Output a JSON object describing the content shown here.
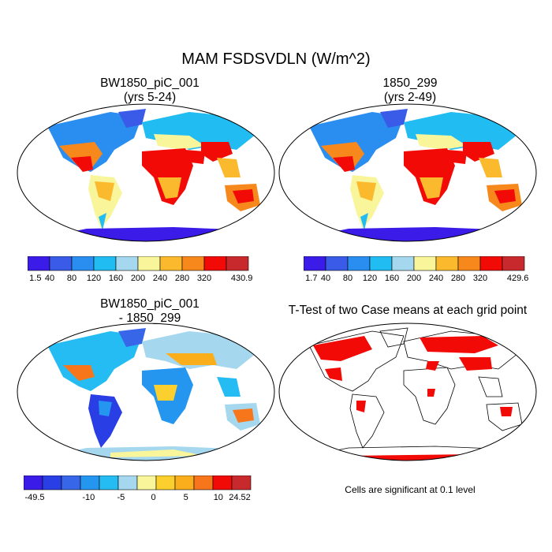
{
  "title": "MAM FSDSVDLN (W/m^2)",
  "panels": [
    {
      "id": "case1",
      "title": "BW1850_piC_001",
      "subtitle": "(yrs 5-24)",
      "colorbar": {
        "colors": [
          "#3a1be8",
          "#3a5ae8",
          "#2a8df0",
          "#20bcf2",
          "#a5d8ee",
          "#f9f59a",
          "#fbb92e",
          "#f7891c",
          "#f20a06",
          "#c8292c"
        ],
        "labels": [
          "1.5",
          "40",
          "80",
          "120",
          "160",
          "200",
          "240",
          "280",
          "320",
          "430.9"
        ]
      }
    },
    {
      "id": "case2",
      "title": "1850_299",
      "subtitle": "(yrs 2-49)",
      "colorbar": {
        "colors": [
          "#3a1be8",
          "#3a5ae8",
          "#2a8df0",
          "#20bcf2",
          "#a5d8ee",
          "#f9f59a",
          "#fbb92e",
          "#f7891c",
          "#f20a06",
          "#c8292c"
        ],
        "labels": [
          "1.7",
          "40",
          "80",
          "120",
          "160",
          "200",
          "240",
          "280",
          "320",
          "429.6"
        ]
      }
    },
    {
      "id": "diff",
      "title": "BW1850_piC_001",
      "subtitle": "- 1850_299",
      "colorbar": {
        "colors": [
          "#3a1be8",
          "#2a3ee6",
          "#3866e8",
          "#2596f0",
          "#24bcf2",
          "#a5d8ee",
          "#f9f59a",
          "#fbd02e",
          "#fbae1c",
          "#f7761c",
          "#f20a06",
          "#c8292c"
        ],
        "labels": [
          "-49.5",
          "-10",
          "-5",
          "0",
          "5",
          "10",
          "24.52"
        ]
      }
    },
    {
      "id": "ttest",
      "title": "T-Test of two Case means at each grid point",
      "footnote": "Cells are significant at 0.1 level"
    }
  ]
}
